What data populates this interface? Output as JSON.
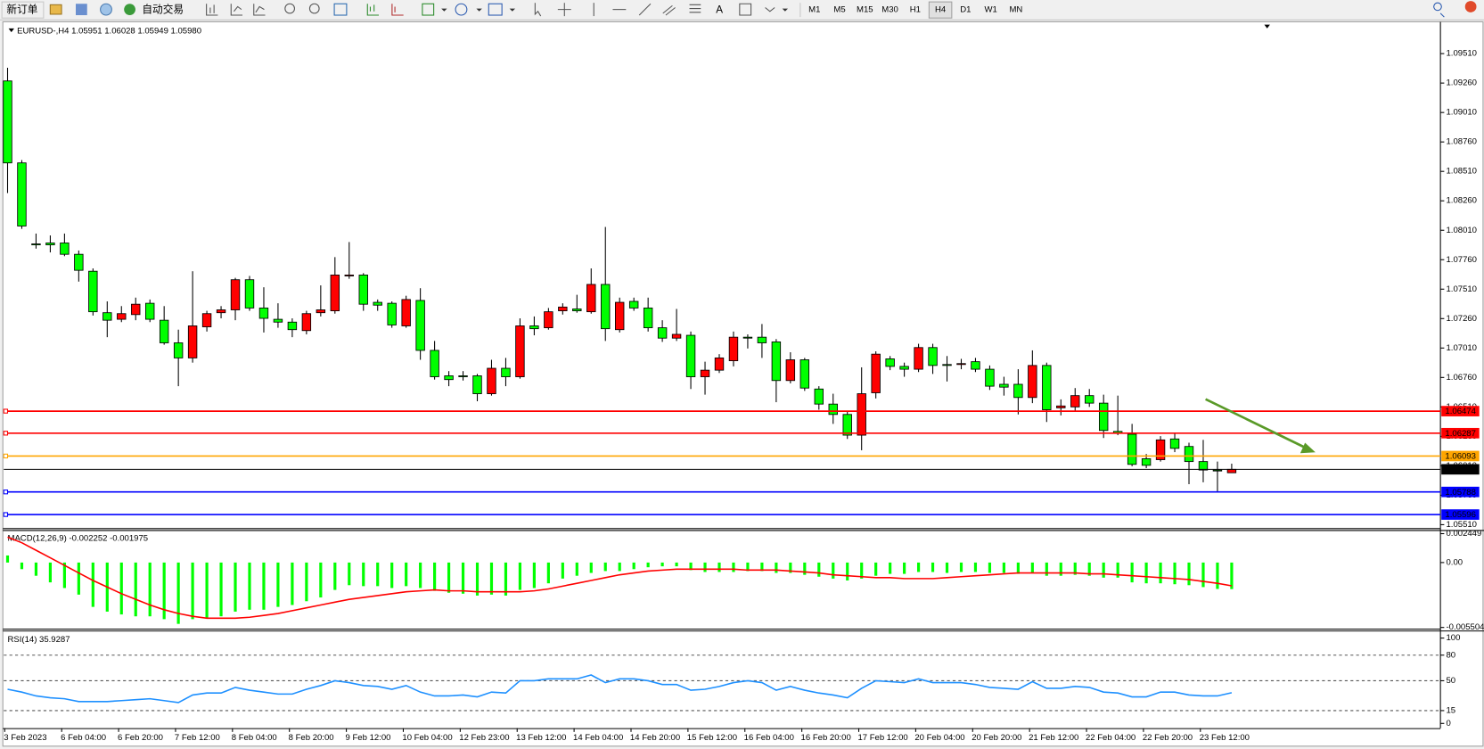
{
  "toolbar": {
    "new_order": "新订单",
    "auto_trading": "自动交易",
    "timeframes": [
      "M1",
      "M5",
      "M15",
      "M30",
      "H1",
      "H4",
      "D1",
      "W1",
      "MN"
    ],
    "active_timeframe": "H4"
  },
  "chart_data": [
    {
      "type": "candlestick",
      "title": "EURUSD-,H4 1.05951 1.06028 1.05949 1.05980",
      "up_color": "#ff0000",
      "down_color": "#00ff00",
      "categories": [
        "3 Feb 2023",
        null,
        null,
        null,
        "6 Feb 04:00",
        null,
        null,
        null,
        "6 Feb 20:00",
        null,
        null,
        null,
        "7 Feb 12:00",
        null,
        null,
        null,
        "8 Feb 04:00",
        null,
        null,
        null,
        "8 Feb 20:00",
        null,
        null,
        null,
        "9 Feb 12:00",
        null,
        null,
        null,
        "10 Feb 04:00",
        null,
        null,
        null,
        "12 Feb 23:00",
        null,
        null,
        null,
        "13 Feb 12:00",
        null,
        null,
        null,
        "14 Feb 04:00",
        null,
        null,
        null,
        "14 Feb 20:00",
        null,
        null,
        null,
        "15 Feb 12:00",
        null,
        null,
        null,
        "16 Feb 04:00",
        null,
        null,
        null,
        "16 Feb 20:00",
        null,
        null,
        null,
        "17 Feb 12:00",
        null,
        null,
        null,
        "20 Feb 04:00",
        null,
        null,
        null,
        "20 Feb 20:00",
        null,
        null,
        null,
        "21 Feb 12:00",
        null,
        null,
        null,
        "22 Feb 04:00",
        null,
        null,
        null,
        "22 Feb 20:00",
        null,
        null,
        null,
        "23 Feb 12:00",
        null,
        null
      ],
      "open": [
        1.09278,
        1.08582,
        1.07894,
        1.07902,
        1.07902,
        1.07806,
        1.07662,
        1.0731,
        1.07254,
        1.07294,
        1.0739,
        1.07246,
        1.07054,
        1.06926,
        1.0719,
        1.0731,
        1.07334,
        1.0759,
        1.0735,
        1.07254,
        1.0723,
        1.07158,
        1.0731,
        1.07326,
        1.07622,
        1.0763,
        1.07398,
        1.0739,
        1.07198,
        1.07414,
        1.0699,
        1.06774,
        1.06774,
        1.06774,
        1.06622,
        1.06838,
        1.06766,
        1.07198,
        1.07182,
        1.07326,
        1.07342,
        1.07318,
        1.0755,
        1.07166,
        1.07406,
        1.0735,
        1.07182,
        1.07094,
        1.07118,
        1.06766,
        1.06822,
        1.06902,
        1.07102,
        1.07102,
        1.07062,
        1.06734,
        1.0691,
        1.06662,
        1.06534,
        1.06446,
        1.0627,
        1.0663,
        1.06918,
        1.06854,
        1.0683,
        1.07014,
        1.0687,
        1.0687,
        1.06894,
        1.0683,
        1.06702,
        1.06702,
        1.0659,
        1.06862,
        1.06502,
        1.0651,
        1.06606,
        1.06542,
        1.06302,
        1.06278,
        1.0607,
        1.06062,
        1.06238,
        1.06174,
        1.06046,
        1.05974,
        1.05951
      ],
      "high": [
        1.0939,
        1.08606,
        1.07982,
        1.07966,
        1.07982,
        1.07838,
        1.07686,
        1.07406,
        1.07366,
        1.07438,
        1.07422,
        1.07366,
        1.07166,
        1.07662,
        1.07326,
        1.07366,
        1.07606,
        1.07622,
        1.07526,
        1.0739,
        1.07262,
        1.07326,
        1.07542,
        1.07782,
        1.0791,
        1.07646,
        1.07422,
        1.07406,
        1.07454,
        1.07518,
        1.0707,
        1.06814,
        1.06814,
        1.0679,
        1.0691,
        1.06926,
        1.07262,
        1.07278,
        1.0735,
        1.0739,
        1.07462,
        1.07686,
        1.08038,
        1.07438,
        1.07438,
        1.07438,
        1.07246,
        1.07342,
        1.0715,
        1.06894,
        1.06958,
        1.0715,
        1.07126,
        1.07214,
        1.07086,
        1.06974,
        1.06926,
        1.06686,
        1.06622,
        1.06478,
        1.06846,
        1.06982,
        1.06942,
        1.06886,
        1.07046,
        1.07046,
        1.06942,
        1.06918,
        1.06926,
        1.06862,
        1.06766,
        1.0683,
        1.0699,
        1.06886,
        1.06574,
        1.0667,
        1.06662,
        1.06614,
        1.06606,
        1.06366,
        1.0611,
        1.06262,
        1.06286,
        1.06206,
        1.0623,
        1.06046,
        1.06028
      ],
      "low": [
        1.08326,
        1.08022,
        1.07854,
        1.07822,
        1.0779,
        1.07574,
        1.07286,
        1.07102,
        1.0723,
        1.07246,
        1.0723,
        1.07038,
        1.06686,
        1.06886,
        1.0715,
        1.07262,
        1.07246,
        1.07326,
        1.07142,
        1.07182,
        1.07102,
        1.07126,
        1.07278,
        1.07302,
        1.07598,
        1.07326,
        1.07326,
        1.07182,
        1.07182,
        1.0691,
        1.06742,
        1.06686,
        1.06734,
        1.06558,
        1.06606,
        1.06686,
        1.0675,
        1.07118,
        1.07166,
        1.07294,
        1.0731,
        1.07302,
        1.0707,
        1.07142,
        1.07326,
        1.0715,
        1.07062,
        1.0707,
        1.06662,
        1.06614,
        1.06798,
        1.06854,
        1.07006,
        1.06926,
        1.0655,
        1.0671,
        1.06646,
        1.06486,
        1.06366,
        1.06238,
        1.06142,
        1.06582,
        1.06822,
        1.06766,
        1.06806,
        1.0679,
        1.06726,
        1.0683,
        1.06806,
        1.06654,
        1.06606,
        1.06446,
        1.06542,
        1.06382,
        1.06438,
        1.0647,
        1.0651,
        1.06246,
        1.0627,
        1.06006,
        1.0599,
        1.06046,
        1.06126,
        1.05854,
        1.0587,
        1.0579,
        1.05949
      ],
      "close": [
        1.08582,
        1.08046,
        1.07886,
        1.07886,
        1.07806,
        1.0767,
        1.07318,
        1.07246,
        1.07302,
        1.07382,
        1.07254,
        1.07054,
        1.06926,
        1.07198,
        1.07302,
        1.07334,
        1.0759,
        1.0735,
        1.07262,
        1.0723,
        1.07166,
        1.07302,
        1.07334,
        1.0763,
        1.0763,
        1.07382,
        1.07374,
        1.07206,
        1.07422,
        1.0699,
        1.06766,
        1.06742,
        1.06766,
        1.06622,
        1.06838,
        1.06766,
        1.07198,
        1.07174,
        1.07318,
        1.07358,
        1.07326,
        1.0755,
        1.07174,
        1.07398,
        1.0735,
        1.07182,
        1.07094,
        1.07126,
        1.06766,
        1.06822,
        1.06926,
        1.07102,
        1.07094,
        1.07054,
        1.06734,
        1.0691,
        1.0667,
        1.06534,
        1.06446,
        1.0627,
        1.06622,
        1.06958,
        1.06854,
        1.0683,
        1.07014,
        1.06862,
        1.06862,
        1.06878,
        1.0683,
        1.06686,
        1.06678,
        1.0659,
        1.06862,
        1.06486,
        1.06518,
        1.06606,
        1.06542,
        1.0631,
        1.06286,
        1.06022,
        1.06014,
        1.0623,
        1.06158,
        1.06046,
        1.05974,
        1.05966,
        1.0598
      ],
      "ylim": [
        1.05485,
        1.09768
      ],
      "yticks": [
        {
          "value": 1.0551,
          "label": "1.05510"
        },
        {
          "value": 1.0576,
          "label": "1.05760"
        },
        {
          "value": 1.0601,
          "label": "1.06010"
        },
        {
          "value": 1.0626,
          "label": "1.06260"
        },
        {
          "value": 1.0651,
          "label": "1.06510"
        },
        {
          "value": 1.0676,
          "label": "1.06760"
        },
        {
          "value": 1.0701,
          "label": "1.07010"
        },
        {
          "value": 1.0726,
          "label": "1.07260"
        },
        {
          "value": 1.0751,
          "label": "1.07510"
        },
        {
          "value": 1.0776,
          "label": "1.07760"
        },
        {
          "value": 1.0801,
          "label": "1.08010"
        },
        {
          "value": 1.0826,
          "label": "1.08260"
        },
        {
          "value": 1.0851,
          "label": "1.08510"
        },
        {
          "value": 1.0876,
          "label": "1.08760"
        },
        {
          "value": 1.0901,
          "label": "1.09010"
        },
        {
          "value": 1.0926,
          "label": "1.09260"
        },
        {
          "value": 1.0951,
          "label": "1.09510"
        }
      ],
      "hlines": [
        {
          "value": 1.06474,
          "color": "#ff0000"
        },
        {
          "value": 1.06287,
          "color": "#ff0000"
        },
        {
          "value": 1.06093,
          "color": "#ffa500"
        },
        {
          "value": 1.0598,
          "label": "1.05980",
          "color": "#000000"
        },
        {
          "value": 1.05788,
          "color": "#0000ff"
        },
        {
          "value": 1.05596,
          "color": "#0000ff"
        }
      ]
    },
    {
      "type": "macd",
      "title": "MACD(12,26,9) -0.002252 -0.001975",
      "series": [
        {
          "kind": "histogram",
          "color": "#00ff00",
          "values": [
            0.0006,
            -0.00056,
            -0.00112,
            -0.00168,
            -0.00216,
            -0.00272,
            -0.00376,
            -0.00416,
            -0.0044,
            -0.00456,
            -0.00456,
            -0.0048,
            -0.0052,
            -0.0048,
            -0.00472,
            -0.00456,
            -0.00416,
            -0.004,
            -0.004,
            -0.00376,
            -0.0036,
            -0.00328,
            -0.00296,
            -0.00232,
            -0.00192,
            -0.002,
            -0.002,
            -0.00216,
            -0.002,
            -0.00216,
            -0.0024,
            -0.00256,
            -0.00264,
            -0.0028,
            -0.00272,
            -0.0028,
            -0.00232,
            -0.00216,
            -0.00176,
            -0.00136,
            -0.00112,
            -0.00088,
            -0.00072,
            -0.00072,
            -0.00056,
            -0.0004,
            -0.00032,
            -0.00032,
            -0.00064,
            -0.0008,
            -0.0008,
            -0.0008,
            -0.00072,
            -0.00072,
            -0.00088,
            -0.00088,
            -0.00104,
            -0.0012,
            -0.00136,
            -0.00152,
            -0.00136,
            -0.00112,
            -0.00096,
            -0.00096,
            -0.0008,
            -0.0008,
            -0.00088,
            -0.0008,
            -0.0008,
            -0.00088,
            -0.00088,
            -0.00096,
            -0.00088,
            -0.00112,
            -0.00112,
            -0.00104,
            -0.00112,
            -0.00128,
            -0.00128,
            -0.00168,
            -0.00176,
            -0.00176,
            -0.00184,
            -0.00192,
            -0.00208,
            -0.00224,
            -0.002252
          ]
        },
        {
          "kind": "line",
          "color": "#ff0000",
          "values": [
            0.00216,
            0.00168,
            0.00104,
            0.0004,
            -0.00024,
            -0.00088,
            -0.00152,
            -0.00208,
            -0.00264,
            -0.00312,
            -0.0036,
            -0.004,
            -0.00432,
            -0.00456,
            -0.00472,
            -0.00472,
            -0.00472,
            -0.00464,
            -0.00448,
            -0.00432,
            -0.00408,
            -0.00384,
            -0.0036,
            -0.00336,
            -0.00312,
            -0.00296,
            -0.0028,
            -0.00264,
            -0.00248,
            -0.0024,
            -0.00232,
            -0.0024,
            -0.0024,
            -0.00248,
            -0.00248,
            -0.00248,
            -0.00248,
            -0.0024,
            -0.00224,
            -0.002,
            -0.00176,
            -0.00152,
            -0.00128,
            -0.00104,
            -0.00088,
            -0.00072,
            -0.00064,
            -0.00056,
            -0.00056,
            -0.00056,
            -0.00056,
            -0.00056,
            -0.00064,
            -0.00064,
            -0.00064,
            -0.00072,
            -0.0008,
            -0.00088,
            -0.00104,
            -0.00112,
            -0.0012,
            -0.00128,
            -0.00128,
            -0.00136,
            -0.00136,
            -0.00136,
            -0.00128,
            -0.0012,
            -0.00112,
            -0.00104,
            -0.00096,
            -0.00088,
            -0.00088,
            -0.00088,
            -0.00088,
            -0.00088,
            -0.00096,
            -0.00096,
            -0.00104,
            -0.00112,
            -0.0012,
            -0.00128,
            -0.00136,
            -0.00144,
            -0.0016,
            -0.00176,
            -0.001975
          ]
        }
      ],
      "ylim": [
        -0.0056,
        0.0026
      ],
      "yticks": [
        0.002449,
        {
          "value": 0,
          "label": "0.00"
        },
        -0.005504
      ]
    },
    {
      "type": "line",
      "title": "RSI(14) 35.9287",
      "series": [
        {
          "color": "#1e90ff",
          "values": [
            40,
            36.7,
            32.2,
            30,
            28.9,
            25.6,
            25.6,
            25.6,
            26.7,
            27.8,
            28.9,
            26.7,
            24.4,
            33.3,
            35.6,
            35.6,
            42.2,
            38.9,
            36.7,
            34.4,
            34.4,
            40,
            44.4,
            50,
            47.8,
            44.4,
            43.3,
            40,
            44.4,
            36.7,
            32.2,
            32.2,
            33.3,
            31.1,
            36.7,
            35.6,
            50,
            50,
            52.2,
            52.2,
            52.2,
            56.7,
            47.8,
            52.2,
            52.2,
            50,
            45.6,
            45.6,
            38.9,
            40,
            43.3,
            47.8,
            50,
            47.8,
            38.9,
            43.3,
            38.9,
            35.6,
            33.3,
            30,
            41.1,
            50,
            48.9,
            47.8,
            52.2,
            47.8,
            47.8,
            47.8,
            45.6,
            42.2,
            41.1,
            40,
            48.9,
            41.1,
            41.1,
            43.3,
            42.2,
            36.7,
            35.6,
            31.1,
            31.1,
            36.7,
            36.7,
            33.3,
            32.2,
            32.2,
            35.9287
          ]
        }
      ],
      "ylim": [
        0,
        100
      ],
      "yticks": [
        0,
        15,
        50,
        80,
        100
      ],
      "levels": [
        15,
        50,
        80
      ]
    }
  ]
}
